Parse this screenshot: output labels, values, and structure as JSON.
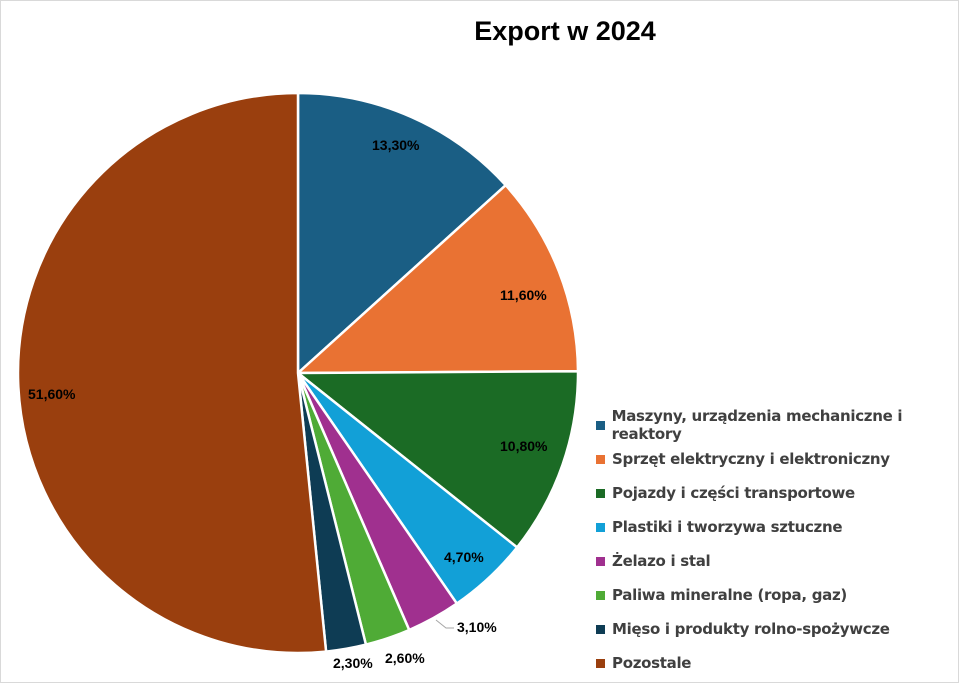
{
  "chart_data": {
    "type": "pie",
    "title": "Export w 2024",
    "categories": [
      "Maszyny, urządzenia mechaniczne i reaktory",
      "Sprzęt elektryczny i elektroniczny",
      "Pojazdy i części transportowe",
      "Plastiki i tworzywa sztuczne",
      "Żelazo i stal",
      "Paliwa mineralne (ropa, gaz)",
      "Mięso i produkty rolno-spożywcze",
      "Pozostale"
    ],
    "values": [
      13.3,
      11.6,
      10.8,
      4.7,
      3.1,
      2.6,
      2.3,
      51.6
    ],
    "labels": [
      "13,30%",
      "11,60%",
      "10,80%",
      "4,70%",
      "3,10%",
      "2,60%",
      "2,30%",
      "51,60%"
    ],
    "colors": [
      "#1a5e84",
      "#e97233",
      "#1b6b25",
      "#12a0d7",
      "#a0308f",
      "#4fab36",
      "#0e3c54",
      "#9a3f0e"
    ],
    "legend_position": "right"
  },
  "title": "Export w 2024"
}
